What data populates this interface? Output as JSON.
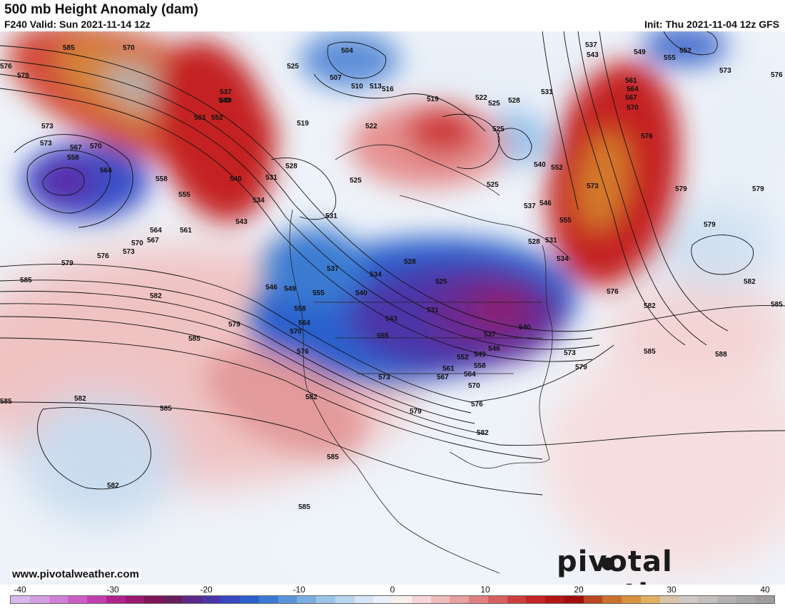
{
  "header": {
    "title": "500 mb Height Anomaly (dam)",
    "valid": "F240 Valid: Sun 2021-11-14 12z",
    "init": "Init: Thu 2021-11-04 12z GFS"
  },
  "footer": {
    "website": "www.pivotalweather.com",
    "brand": "pivotal weather"
  },
  "colorbar": {
    "ticks": [
      "-40",
      "-30",
      "-20",
      "-10",
      "0",
      "10",
      "20",
      "30",
      "40"
    ],
    "colors": [
      "#d9b7ea",
      "#d59ee2",
      "#d17fd6",
      "#cc5fc6",
      "#c23fae",
      "#b0238c",
      "#9a1a6e",
      "#7d1657",
      "#681e5e",
      "#5b2a86",
      "#4b35a8",
      "#3a48c2",
      "#2c61cc",
      "#3a7bd2",
      "#5a95da",
      "#7aaee2",
      "#9cc4ea",
      "#bad6f0",
      "#d6e6f5",
      "#eaf1f8",
      "#fbeeee",
      "#f6d6d6",
      "#efbcbc",
      "#e79f9f",
      "#df8080",
      "#d65f5f",
      "#cd3e3e",
      "#c42424",
      "#b41616",
      "#a10e0e",
      "#b8471e",
      "#c9702c",
      "#d6923e",
      "#dfb063",
      "#d9c3a6",
      "#cfc9c4",
      "#c2bfbd",
      "#b5b2b1",
      "#a9a7a6",
      "#9f9c9b"
    ]
  },
  "contour_labels": [
    "585",
    "576",
    "570",
    "549",
    "537",
    "543",
    "552",
    "504",
    "507",
    "510",
    "513",
    "516",
    "519",
    "522",
    "525",
    "528",
    "531",
    "540",
    "546",
    "555",
    "561",
    "558",
    "564",
    "567",
    "573",
    "579",
    "582",
    "588",
    "534"
  ],
  "legend_colors": {
    "negative_deep": "#7d2aa8",
    "negative": "#2a5fd0",
    "positive": "#c41e1e",
    "positive_deep": "#d07a2a",
    "extreme": "#b8b0ad"
  }
}
